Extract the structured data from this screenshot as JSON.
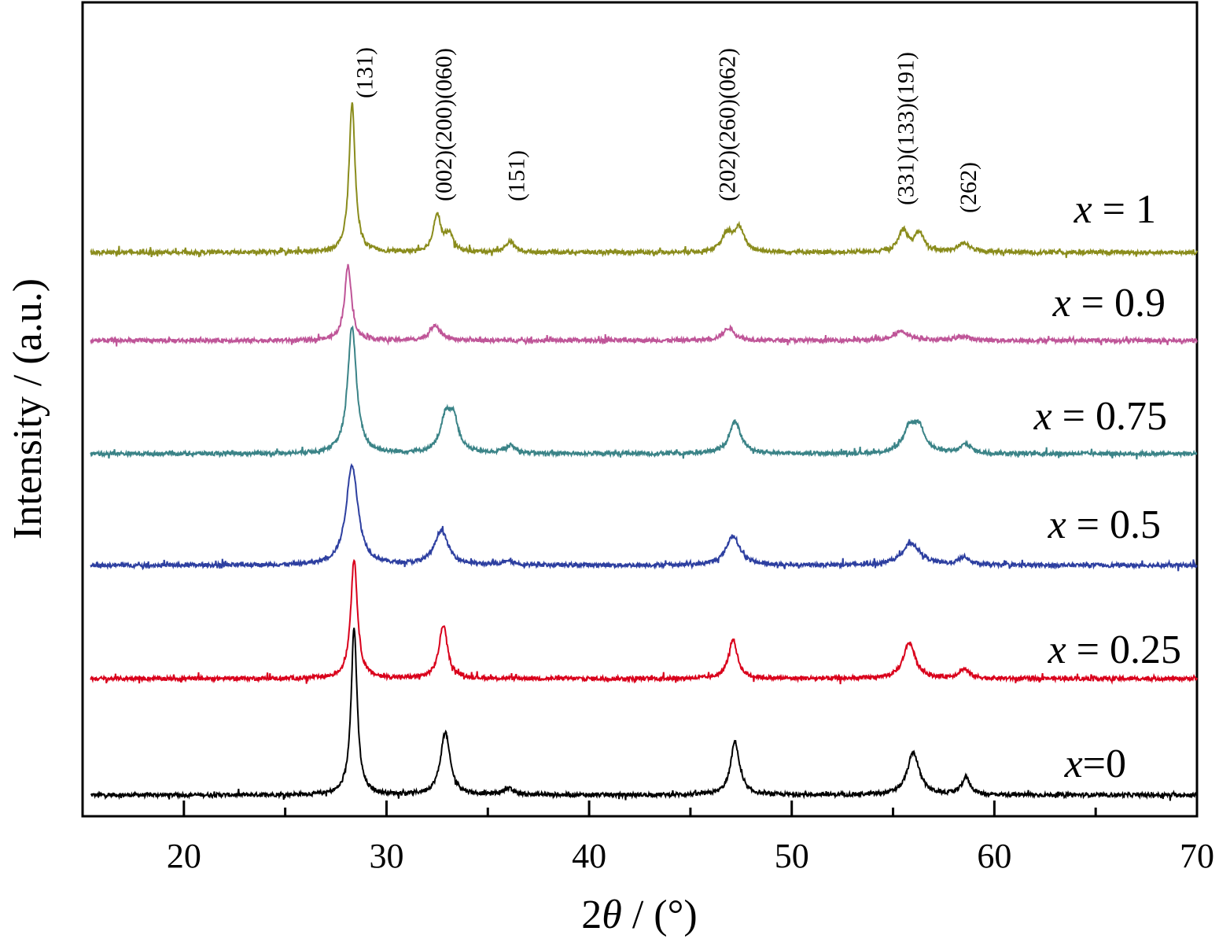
{
  "chart_data": {
    "type": "line",
    "xlabel": "2θ / (°)",
    "xlabel_parts": {
      "prefix": "2",
      "symbol": "θ",
      "suffix": " / (°)"
    },
    "ylabel": "Intensity / (a.u.)",
    "xlim": [
      15,
      70
    ],
    "xticks": [
      20,
      30,
      40,
      50,
      60,
      70
    ],
    "minor_xticks": [
      25,
      35,
      45,
      55,
      65
    ],
    "yticks": [],
    "grid": false,
    "legend": "labels placed at right end of each trace",
    "series": [
      {
        "name": "x=0",
        "label_var": "x",
        "label_rest": "=0",
        "color": "#000000",
        "baseline": 0,
        "peaks": [
          [
            28.4,
            212,
            0.18
          ],
          [
            32.9,
            80,
            0.28
          ],
          [
            36.0,
            8,
            0.3
          ],
          [
            47.2,
            68,
            0.26
          ],
          [
            56.0,
            54,
            0.35
          ],
          [
            58.6,
            22,
            0.25
          ]
        ]
      },
      {
        "name": "x = 0.25",
        "label_var": "x",
        "label_rest": " = 0.25",
        "color": "#d9001b",
        "baseline": 148,
        "peaks": [
          [
            28.4,
            152,
            0.2
          ],
          [
            32.8,
            68,
            0.25
          ],
          [
            47.1,
            50,
            0.26
          ],
          [
            55.8,
            46,
            0.35
          ],
          [
            58.5,
            12,
            0.3
          ]
        ]
      },
      {
        "name": "x = 0.5",
        "label_var": "x",
        "label_rest": " = 0.5",
        "color": "#2d3fa0",
        "baseline": 292,
        "peaks": [
          [
            28.3,
            128,
            0.35
          ],
          [
            32.7,
            44,
            0.4
          ],
          [
            36.0,
            6,
            0.3
          ],
          [
            47.1,
            38,
            0.4
          ],
          [
            55.9,
            28,
            0.55
          ],
          [
            58.5,
            10,
            0.3
          ]
        ]
      },
      {
        "name": "x = 0.75",
        "label_var": "x",
        "label_rest": " = 0.75",
        "color": "#3a8387",
        "baseline": 434,
        "peaks": [
          [
            28.3,
            162,
            0.26
          ],
          [
            32.9,
            40,
            0.3
          ],
          [
            33.3,
            42,
            0.3
          ],
          [
            36.1,
            10,
            0.3
          ],
          [
            47.2,
            40,
            0.35
          ],
          [
            55.8,
            30,
            0.35
          ],
          [
            56.3,
            30,
            0.35
          ],
          [
            58.6,
            12,
            0.3
          ]
        ]
      },
      {
        "name": "x = 0.9",
        "label_var": "x",
        "label_rest": " = 0.9",
        "color": "#bf5598",
        "baseline": 578,
        "peaks": [
          [
            28.1,
            96,
            0.2
          ],
          [
            32.4,
            20,
            0.3
          ],
          [
            46.9,
            16,
            0.35
          ],
          [
            55.4,
            12,
            0.45
          ],
          [
            58.4,
            5,
            0.4
          ]
        ]
      },
      {
        "name": "x = 1",
        "label_var": "x",
        "label_rest": " = 1",
        "color": "#8a8c1c",
        "baseline": 690,
        "peaks": [
          [
            28.3,
            190,
            0.18
          ],
          [
            32.5,
            48,
            0.22
          ],
          [
            33.1,
            22,
            0.22
          ],
          [
            36.1,
            14,
            0.25
          ],
          [
            46.8,
            22,
            0.3
          ],
          [
            47.4,
            30,
            0.3
          ],
          [
            55.5,
            28,
            0.28
          ],
          [
            56.3,
            24,
            0.28
          ],
          [
            58.5,
            12,
            0.35
          ]
        ]
      }
    ],
    "annotations": [
      {
        "text": "(131)",
        "x": 29.3,
        "y": 886
      },
      {
        "text": "(002)(200)(060)",
        "x": 33.2,
        "y": 755
      },
      {
        "text": "(151)",
        "x": 36.8,
        "y": 755
      },
      {
        "text": "(202)(260)(062)",
        "x": 47.2,
        "y": 755
      },
      {
        "text": "(331)(133)(191)",
        "x": 56.0,
        "y": 750
      },
      {
        "text": "(262)",
        "x": 59.1,
        "y": 740
      }
    ]
  }
}
